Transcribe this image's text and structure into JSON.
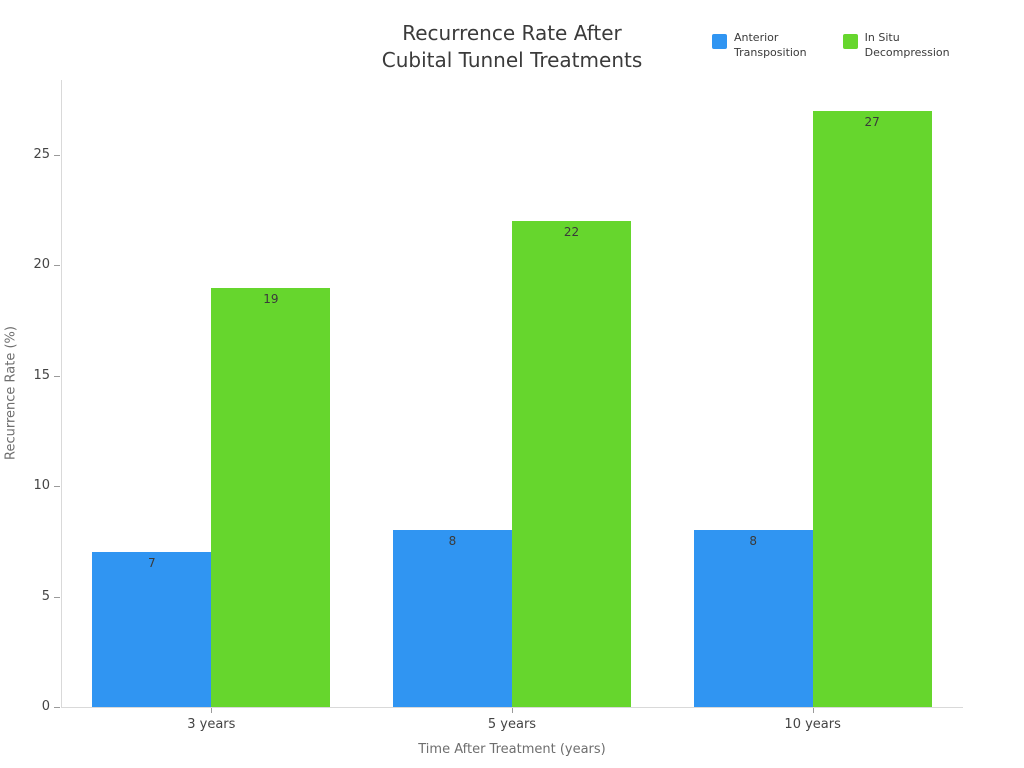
{
  "chart_data": {
    "type": "bar",
    "title": "Recurrence Rate After Cubital Tunnel Treatments",
    "title_lines": [
      "Recurrence Rate After",
      "Cubital Tunnel Treatments"
    ],
    "xlabel": "Time After Treatment (years)",
    "ylabel": "Recurrence Rate (%)",
    "categories": [
      "3 years",
      "5 years",
      "10 years"
    ],
    "series": [
      {
        "name": "Anterior Transposition",
        "label_lines": [
          "Anterior",
          "Transposition"
        ],
        "color": "#3095F2",
        "values": [
          7,
          8,
          8
        ]
      },
      {
        "name": "In Situ Decompression",
        "label_lines": [
          "In Situ",
          "Decompression"
        ],
        "color": "#66D62D",
        "values": [
          19,
          22,
          27
        ]
      }
    ],
    "yticks": [
      0,
      5,
      10,
      15,
      20,
      25
    ],
    "ylim": [
      0,
      28.4
    ],
    "grid": false,
    "legend_position": "top-right",
    "bar_value_labels": true
  },
  "colors": {
    "title": "#3b3b3b",
    "tick_label": "#444444",
    "axis_title": "#6e6e6e",
    "axis_line": "#d9d9d9",
    "tick_mark": "#9a9a9a",
    "bar_label": "#3a3a3a",
    "background": "#ffffff"
  }
}
